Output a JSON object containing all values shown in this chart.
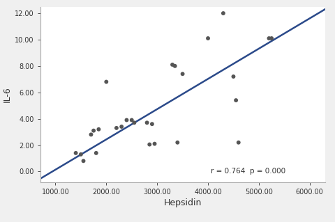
{
  "scatter_x": [
    1400,
    1500,
    1550,
    1700,
    1750,
    1800,
    1850,
    2000,
    2200,
    2300,
    2400,
    2500,
    2550,
    2800,
    2850,
    2900,
    2950,
    3300,
    3350,
    3400,
    3500,
    4000,
    4300,
    4500,
    4550,
    4600,
    5200,
    5250
  ],
  "scatter_y": [
    1.4,
    1.3,
    0.8,
    2.8,
    3.1,
    1.4,
    3.2,
    6.8,
    3.3,
    3.4,
    3.9,
    3.9,
    3.7,
    3.7,
    2.05,
    3.6,
    2.1,
    8.1,
    8.0,
    2.2,
    7.4,
    10.1,
    12.0,
    7.2,
    5.4,
    2.2,
    10.1,
    10.1
  ],
  "line_x": [
    700,
    6300
  ],
  "line_y": [
    -0.55,
    12.3
  ],
  "xlabel": "Hepsidin",
  "ylabel": "IL-6",
  "annotation": "r = 0.764  p = 0.000",
  "xlim": [
    700,
    6300
  ],
  "ylim": [
    -0.8,
    12.5
  ],
  "xticks": [
    1000,
    2000,
    3000,
    4000,
    5000,
    6000
  ],
  "yticks": [
    0.0,
    2.0,
    4.0,
    6.0,
    8.0,
    10.0,
    12.0
  ],
  "scatter_color": "#555555",
  "line_color": "#2b4a8a",
  "background_color": "#f0f0f0",
  "plot_bg_color": "#ffffff",
  "marker_size": 18,
  "line_width": 1.8,
  "xlabel_fontsize": 9,
  "ylabel_fontsize": 9,
  "tick_fontsize": 7,
  "annotation_fontsize": 7.5
}
